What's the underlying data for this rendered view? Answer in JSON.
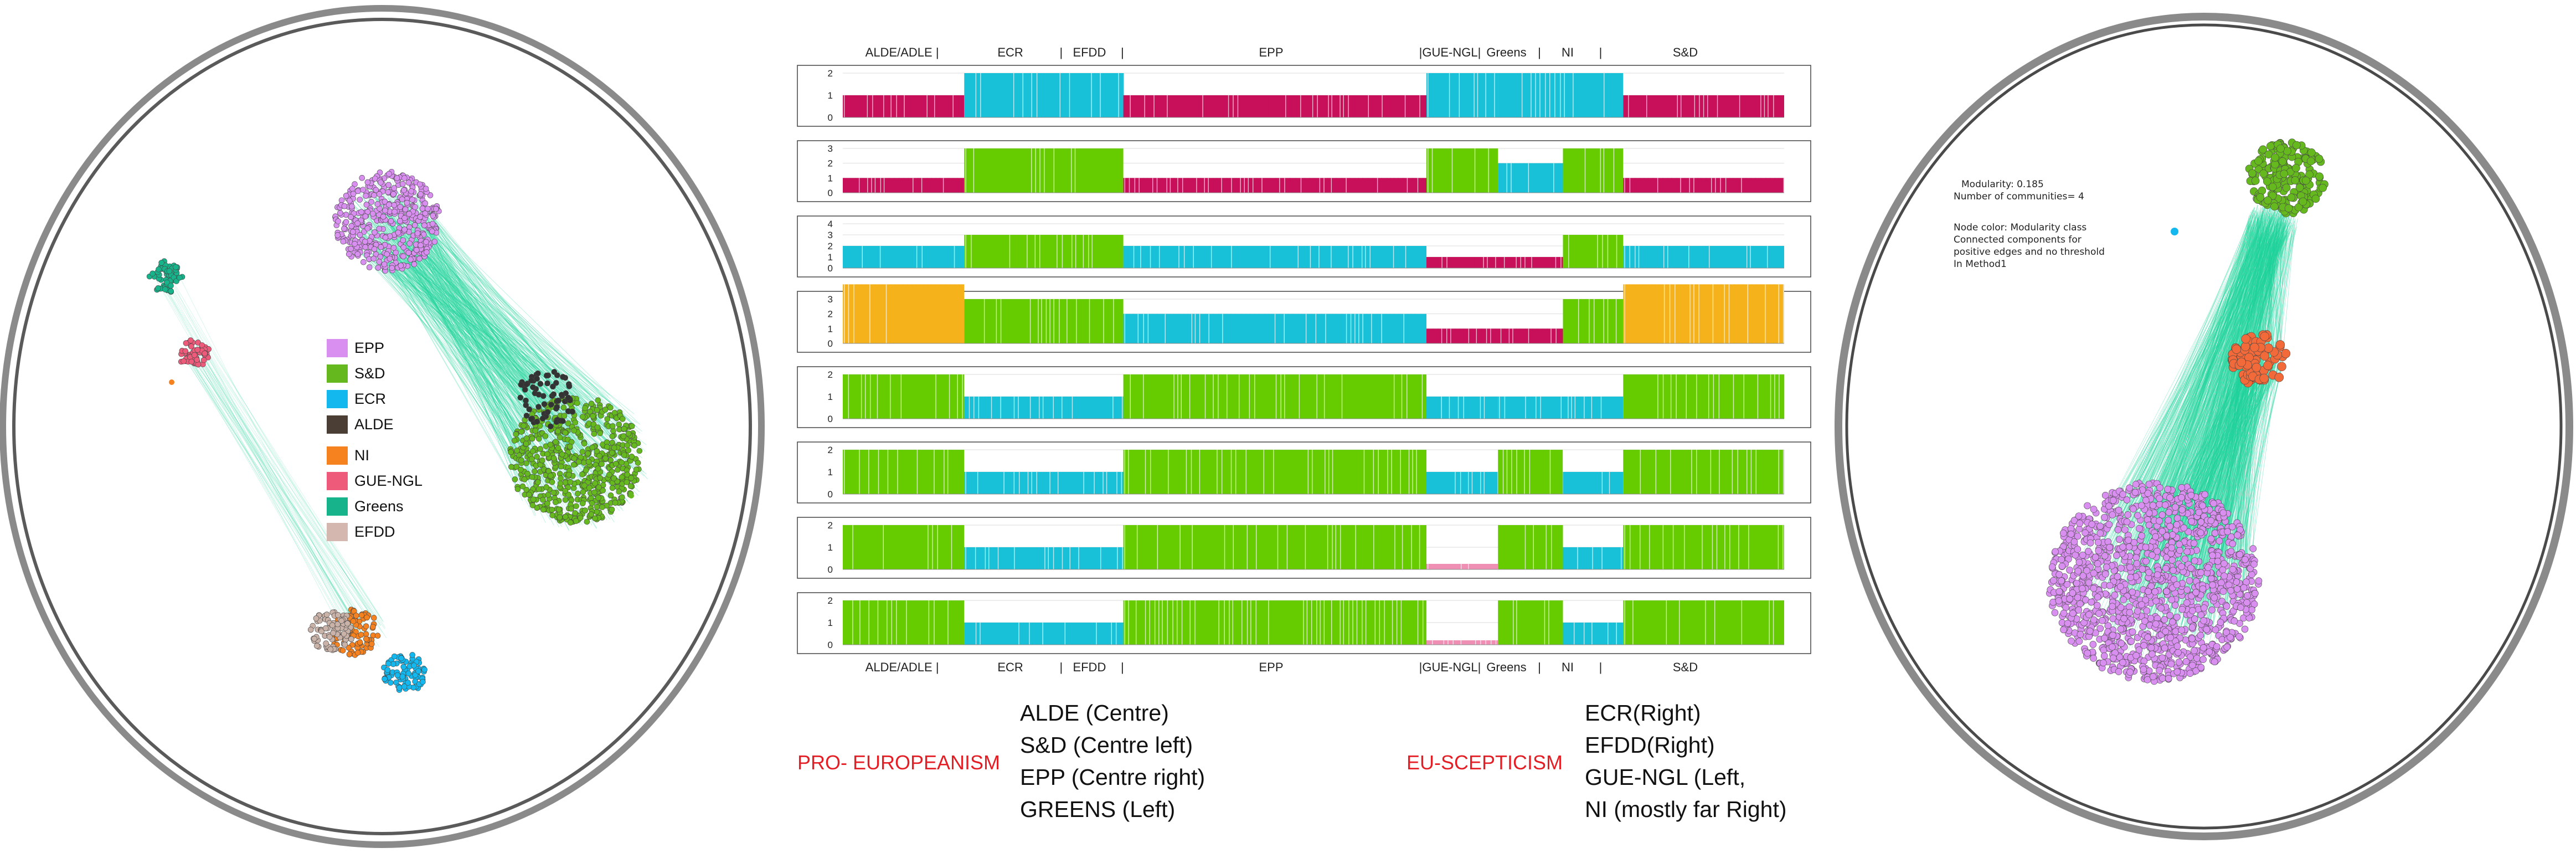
{
  "legend": [
    {
      "label": "EPP",
      "color": "#d98ff0"
    },
    {
      "label": "S&D",
      "color": "#65b81e"
    },
    {
      "label": "ECR",
      "color": "#12b8ee"
    },
    {
      "label": "ALDE",
      "color": "#4a3e35"
    },
    {
      "label": "NI",
      "color": "#f5821f"
    },
    {
      "label": "GUE-NGL",
      "color": "#ee5a7a"
    },
    {
      "label": "Greens",
      "color": "#17b38a"
    },
    {
      "label": "EFDD",
      "color": "#d4b7ae"
    }
  ],
  "group_labels_top": [
    {
      "text": "ALDE/ADLE |",
      "cx": 0.063
    },
    {
      "text": "ECR",
      "cx": 0.178
    },
    {
      "text": "|",
      "cx": 0.232
    },
    {
      "text": "EFDD",
      "cx": 0.262
    },
    {
      "text": "|",
      "cx": 0.297
    },
    {
      "text": "EPP",
      "cx": 0.455
    },
    {
      "text": "|GUE-NGL|",
      "cx": 0.645
    },
    {
      "text": "Greens",
      "cx": 0.705
    },
    {
      "text": "|",
      "cx": 0.74
    },
    {
      "text": "NI",
      "cx": 0.77
    },
    {
      "text": "|",
      "cx": 0.805
    },
    {
      "text": "S&D",
      "cx": 0.895
    }
  ],
  "strip_colors": {
    "crimson": "#c8105a",
    "cyan": "#18c1d8",
    "green": "#66cc00",
    "orange": "#f6b21b",
    "pink": "#f08fb4"
  },
  "strips": [
    {
      "yticks": [
        "2",
        "1",
        "0"
      ],
      "levels": 3,
      "segments": [
        [
          "crimson",
          0,
          0.129,
          1,
          2
        ],
        [
          "cyan",
          0.129,
          0.298,
          2,
          1
        ],
        [
          "crimson",
          0.298,
          0.62,
          1,
          2
        ],
        [
          "cyan",
          0.62,
          0.696,
          2,
          1
        ],
        [
          "cyan",
          0.696,
          0.765,
          2,
          1
        ],
        [
          "cyan",
          0.765,
          0.829,
          2,
          1
        ],
        [
          "crimson",
          0.829,
          1.0,
          1,
          2
        ]
      ]
    },
    {
      "yticks": [
        "3",
        "2",
        "1",
        "0"
      ],
      "levels": 4,
      "segments": [
        [
          "crimson",
          0,
          0.129,
          1,
          1
        ],
        [
          "green",
          0.129,
          0.298,
          3,
          1
        ],
        [
          "crimson",
          0.298,
          0.62,
          1,
          2
        ],
        [
          "green",
          0.62,
          0.696,
          3,
          1
        ],
        [
          "cyan",
          0.696,
          0.765,
          2,
          1
        ],
        [
          "green",
          0.765,
          0.829,
          3,
          1
        ],
        [
          "crimson",
          0.829,
          1.0,
          1,
          2
        ]
      ]
    },
    {
      "yticks": [
        "4",
        "3",
        "2",
        "1",
        "0"
      ],
      "levels": 5,
      "segments": [
        [
          "cyan",
          0,
          0.129,
          2,
          1
        ],
        [
          "green",
          0.129,
          0.298,
          3,
          1
        ],
        [
          "cyan",
          0.298,
          0.62,
          2,
          2
        ],
        [
          "crimson",
          0.62,
          0.765,
          1,
          2
        ],
        [
          "green",
          0.765,
          0.829,
          3,
          1
        ],
        [
          "cyan",
          0.829,
          1.0,
          2,
          2
        ]
      ]
    },
    {
      "yticks": [
        "3",
        "2",
        "1",
        "0"
      ],
      "levels": 4,
      "segments": [
        [
          "orange",
          0,
          0.129,
          4,
          1
        ],
        [
          "green",
          0.129,
          0.298,
          3,
          1
        ],
        [
          "cyan",
          0.298,
          0.62,
          2,
          2
        ],
        [
          "crimson",
          0.62,
          0.765,
          1,
          2
        ],
        [
          "green",
          0.765,
          0.829,
          3,
          1
        ],
        [
          "orange",
          0.829,
          1.0,
          4,
          1
        ]
      ]
    },
    {
      "yticks": [
        "2",
        "1",
        "0"
      ],
      "levels": 3,
      "segments": [
        [
          "green",
          0,
          0.129,
          2,
          1
        ],
        [
          "cyan",
          0.129,
          0.298,
          1,
          1
        ],
        [
          "green",
          0.298,
          0.62,
          2,
          1
        ],
        [
          "cyan",
          0.62,
          0.696,
          1,
          1
        ],
        [
          "cyan",
          0.696,
          0.765,
          1,
          1
        ],
        [
          "cyan",
          0.765,
          0.829,
          1,
          1
        ],
        [
          "green",
          0.829,
          1.0,
          2,
          1
        ]
      ]
    },
    {
      "yticks": [
        "2",
        "1",
        "0"
      ],
      "levels": 3,
      "segments": [
        [
          "green",
          0,
          0.129,
          2,
          1
        ],
        [
          "cyan",
          0.129,
          0.298,
          1,
          2
        ],
        [
          "green",
          0.298,
          0.62,
          2,
          1
        ],
        [
          "cyan",
          0.62,
          0.696,
          1,
          1
        ],
        [
          "green",
          0.696,
          0.765,
          2,
          1
        ],
        [
          "cyan",
          0.765,
          0.829,
          1,
          2
        ],
        [
          "green",
          0.829,
          1.0,
          2,
          1
        ]
      ]
    },
    {
      "yticks": [
        "2",
        "1",
        "0"
      ],
      "levels": 3,
      "segments": [
        [
          "green",
          0,
          0.129,
          2,
          1
        ],
        [
          "cyan",
          0.129,
          0.298,
          1,
          2
        ],
        [
          "green",
          0.298,
          0.62,
          2,
          1
        ],
        [
          "pink",
          0.62,
          0.696,
          0.25,
          1
        ],
        [
          "green",
          0.696,
          0.765,
          2,
          1
        ],
        [
          "cyan",
          0.765,
          0.829,
          1,
          2
        ],
        [
          "green",
          0.829,
          1.0,
          2,
          1
        ]
      ]
    },
    {
      "yticks": [
        "2",
        "1",
        "0"
      ],
      "levels": 3,
      "segments": [
        [
          "green",
          0,
          0.129,
          2,
          1
        ],
        [
          "cyan",
          0.129,
          0.298,
          1,
          2
        ],
        [
          "green",
          0.298,
          0.62,
          2,
          3
        ],
        [
          "pink",
          0.62,
          0.696,
          0.2,
          3
        ],
        [
          "green",
          0.696,
          0.765,
          2,
          2
        ],
        [
          "cyan",
          0.765,
          0.829,
          1,
          2
        ],
        [
          "green",
          0.829,
          1.0,
          2,
          1
        ]
      ]
    }
  ],
  "group_labels_bottom": [
    {
      "text": "ALDE/ADLE |",
      "cx": 0.063
    },
    {
      "text": "ECR",
      "cx": 0.178
    },
    {
      "text": "|",
      "cx": 0.232
    },
    {
      "text": "EFDD",
      "cx": 0.262
    },
    {
      "text": "|",
      "cx": 0.297
    },
    {
      "text": "EPP",
      "cx": 0.455
    },
    {
      "text": "|GUE-NGL|",
      "cx": 0.645
    },
    {
      "text": "Greens",
      "cx": 0.705
    },
    {
      "text": "|",
      "cx": 0.74
    },
    {
      "text": "NI",
      "cx": 0.77
    },
    {
      "text": "|",
      "cx": 0.805
    },
    {
      "text": "S&D",
      "cx": 0.895
    }
  ],
  "pro_label": "PRO- EUROPEANISM",
  "pro_parties": [
    "ALDE (Centre)",
    "S&D (Centre left)",
    "EPP (Centre right)",
    "GREENS (Left)"
  ],
  "sceptic_label": "EU-SCEPTICISM",
  "sceptic_parties": [
    "ECR(Right)",
    "EFDD(Right)",
    "GUE-NGL (Left,",
    "NI (mostly far Right)"
  ],
  "annotation": {
    "modularity": "Modularity: 0.185",
    "communities": "Number of communities= 4",
    "node_color": "Node color: Modularity class",
    "line1": "Connected components for",
    "line2": "positive edges and no threshold",
    "line3": "In Method1"
  },
  "network_colors": {
    "edge": "#1fd39a",
    "epp": "#d98ff0",
    "sd": "#65b81e",
    "ecr": "#12b8ee",
    "alde": "#333333",
    "ni": "#f5821f",
    "gue": "#ee5a7a",
    "greens": "#17b38a",
    "efdd": "#c9b2a8",
    "right_orange": "#f26a3a"
  }
}
